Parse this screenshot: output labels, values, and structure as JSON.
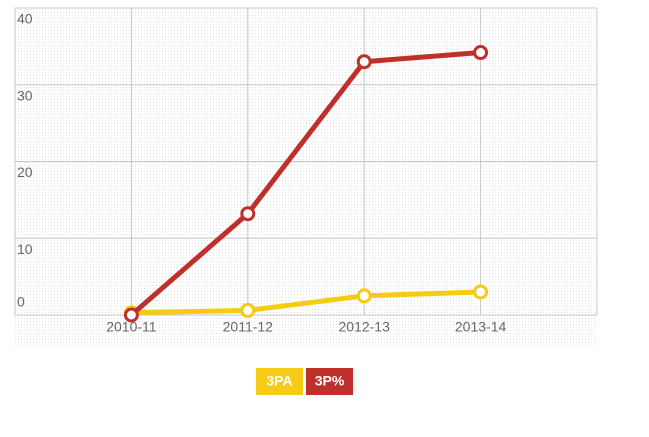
{
  "chart_data": {
    "type": "line",
    "categories": [
      "2010-11",
      "2011-12",
      "2012-13",
      "2013-14"
    ],
    "series": [
      {
        "name": "3PA",
        "color": "#f5cc13",
        "values": [
          0.3,
          0.6,
          2.5,
          3
        ]
      },
      {
        "name": "3P%",
        "color": "#c0302b",
        "values": [
          0,
          13.2,
          33,
          34.2
        ]
      }
    ],
    "ylim": [
      0,
      40
    ],
    "yticks": [
      0,
      10,
      20,
      30,
      40
    ],
    "grid": true
  }
}
